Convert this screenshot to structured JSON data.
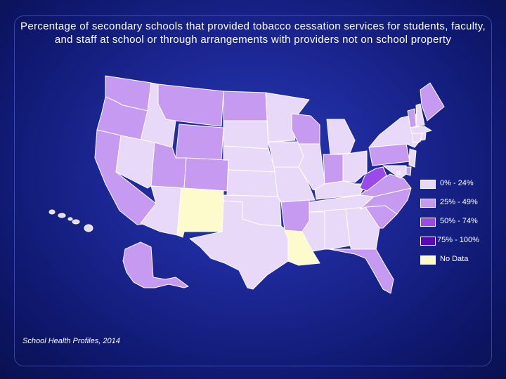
{
  "title": "Percentage of secondary schools that provided tobacco cessation services for students, faculty, and staff at school or through arrangements with providers not on school property",
  "source": "School Health Profiles, 2014",
  "colors": {
    "bin_0_24": "#e8d9f8",
    "bin_25_49": "#c69af0",
    "bin_50_74": "#9a4ae8",
    "bin_75_100": "#5a0ab0",
    "no_data": "#fdfacc",
    "border": "#ffffff"
  },
  "legend": [
    {
      "label": "0% - 24%",
      "color": "#e8d9f8"
    },
    {
      "label": "25% - 49%",
      "color": "#c69af0"
    },
    {
      "label": "50% - 74%",
      "color": "#9a4ae8"
    },
    {
      "label": "75% - 100%",
      "color": "#5a0ab0"
    },
    {
      "label": "No Data",
      "color": "#fdfacc"
    }
  ],
  "states": {
    "WA": "25-49",
    "OR": "25-49",
    "CA": "25-49",
    "ID": "0-24",
    "NV": "0-24",
    "MT": "25-49",
    "WY": "25-49",
    "UT": "25-49",
    "CO": "25-49",
    "AZ": "0-24",
    "NM": "No Data",
    "ND": "25-49",
    "SD": "0-24",
    "NE": "0-24",
    "KS": "0-24",
    "OK": "0-24",
    "TX": "0-24",
    "MN": "0-24",
    "IA": "0-24",
    "MO": "0-24",
    "AR": "25-49",
    "LA": "No Data",
    "WI": "25-49",
    "IL": "0-24",
    "MI": "0-24",
    "IN": "25-49",
    "OH": "0-24",
    "KY": "0-24",
    "TN": "0-24",
    "MS": "0-24",
    "AL": "0-24",
    "GA": "0-24",
    "FL": "25-49",
    "SC": "25-49",
    "NC": "25-49",
    "VA": "25-49",
    "WV": "50-74",
    "PA": "25-49",
    "NY": "0-24",
    "VT": "25-49",
    "NH": "0-24",
    "ME": "25-49",
    "MA": "0-24",
    "RI": "0-24",
    "CT": "0-24",
    "NJ": "0-24",
    "DE": "25-49",
    "MD": "0-24",
    "DC": "0-24",
    "AK": "25-49",
    "HI": "0-24"
  }
}
